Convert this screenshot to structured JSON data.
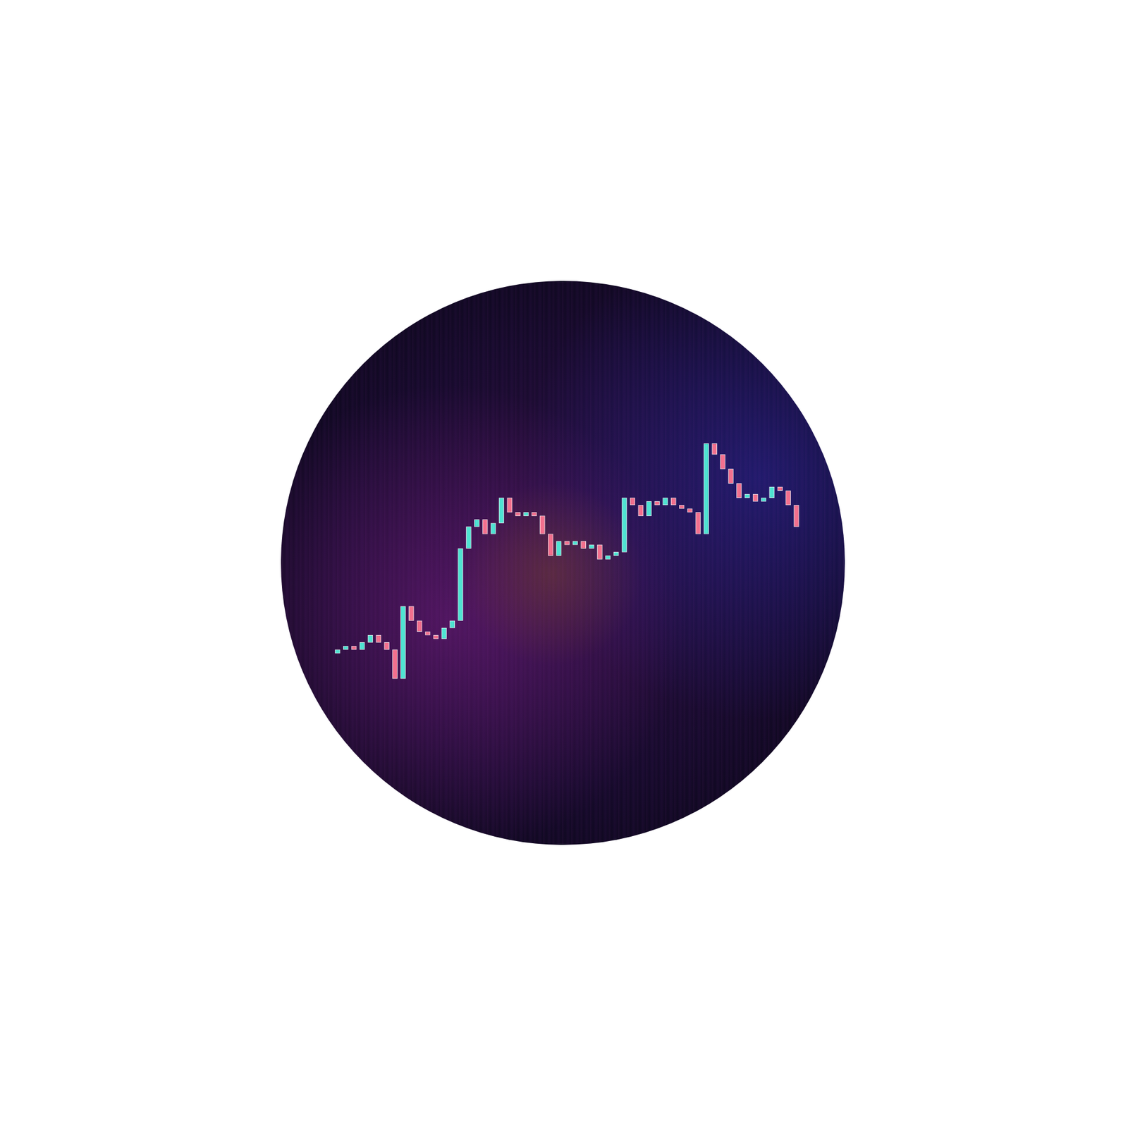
{
  "chart_data": {
    "type": "candlestick",
    "x": [
      1,
      2,
      3,
      4,
      5,
      6,
      7,
      8,
      9,
      10,
      11,
      12,
      13,
      14,
      15,
      16,
      17,
      18,
      19,
      20,
      21,
      22,
      23,
      24,
      25,
      26,
      27,
      28,
      29,
      30,
      31,
      32,
      33,
      34,
      35,
      36,
      37,
      38,
      39,
      40,
      41,
      42,
      43,
      44,
      45,
      46,
      47,
      48,
      49,
      50,
      51,
      52,
      53,
      54,
      55,
      56,
      57
    ],
    "values": [
      [
        9.5,
        10
      ],
      [
        10,
        10.5
      ],
      [
        10.5,
        10
      ],
      [
        10,
        11
      ],
      [
        11,
        12
      ],
      [
        12,
        11
      ],
      [
        11,
        10
      ],
      [
        10,
        6
      ],
      [
        6,
        16
      ],
      [
        16,
        14
      ],
      [
        14,
        12.5
      ],
      [
        12.5,
        12
      ],
      [
        12,
        11.5
      ],
      [
        11.5,
        13
      ],
      [
        13,
        14
      ],
      [
        14,
        24
      ],
      [
        24,
        27
      ],
      [
        27,
        28
      ],
      [
        28,
        26
      ],
      [
        26,
        27.5
      ],
      [
        27.5,
        31
      ],
      [
        31,
        29
      ],
      [
        29,
        28.5
      ],
      [
        28.5,
        29
      ],
      [
        29,
        28.5
      ],
      [
        28.5,
        26
      ],
      [
        26,
        23
      ],
      [
        23,
        25
      ],
      [
        25,
        24.5
      ],
      [
        24.5,
        25
      ],
      [
        25,
        24
      ],
      [
        24,
        24.5
      ],
      [
        24.5,
        22.5
      ],
      [
        22.5,
        23
      ],
      [
        23,
        23.5
      ],
      [
        23.5,
        31
      ],
      [
        31,
        30
      ],
      [
        30,
        28.5
      ],
      [
        28.5,
        30.5
      ],
      [
        30.5,
        30
      ],
      [
        30,
        31
      ],
      [
        31,
        30
      ],
      [
        30,
        29.5
      ],
      [
        29.5,
        29
      ],
      [
        29,
        26
      ],
      [
        26,
        38.5
      ],
      [
        38.5,
        37
      ],
      [
        37,
        35
      ],
      [
        35,
        33
      ],
      [
        33,
        31
      ],
      [
        31,
        31.5
      ],
      [
        31.5,
        30.5
      ],
      [
        30.5,
        31
      ],
      [
        31,
        32.5
      ],
      [
        32.5,
        32
      ],
      [
        32,
        30
      ],
      [
        30,
        27
      ]
    ],
    "colors": [
      "#4fe3d2",
      "#4fe3d2",
      "#f2708e",
      "#4fe3d2",
      "#4fe3d2",
      "#f2708e",
      "#f2708e",
      "#f2708e",
      "#4fe3d2",
      "#f2708e",
      "#f2708e",
      "#f2708e",
      "#f2708e",
      "#4fe3d2",
      "#4fe3d2",
      "#4fe3d2",
      "#4fe3d2",
      "#4fe3d2",
      "#f2708e",
      "#4fe3d2",
      "#4fe3d2",
      "#f2708e",
      "#f2708e",
      "#4fe3d2",
      "#f2708e",
      "#f2708e",
      "#f2708e",
      "#4fe3d2",
      "#f2708e",
      "#4fe3d2",
      "#f2708e",
      "#4fe3d2",
      "#f2708e",
      "#4fe3d2",
      "#4fe3d2",
      "#4fe3d2",
      "#f2708e",
      "#f2708e",
      "#4fe3d2",
      "#f2708e",
      "#4fe3d2",
      "#f2708e",
      "#f2708e",
      "#f2708e",
      "#f2708e",
      "#4fe3d2",
      "#f2708e",
      "#f2708e",
      "#f2708e",
      "#f2708e",
      "#4fe3d2",
      "#f2708e",
      "#4fe3d2",
      "#4fe3d2",
      "#f2708e",
      "#f2708e",
      "#f2708e"
    ],
    "xlim": [
      -1,
      58
    ],
    "ylim": [
      -17,
      61
    ],
    "grid": false,
    "tick_labels": false
  }
}
